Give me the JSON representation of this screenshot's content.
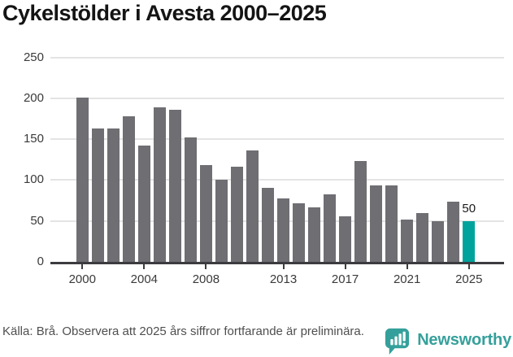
{
  "title": "Cykelstölder i Avesta 2000–2025",
  "chart_data": {
    "type": "bar",
    "title": "Cykelstölder i Avesta 2000–2025",
    "x": [
      2000,
      2001,
      2002,
      2003,
      2004,
      2005,
      2006,
      2007,
      2008,
      2009,
      2010,
      2011,
      2012,
      2013,
      2014,
      2015,
      2016,
      2017,
      2018,
      2019,
      2020,
      2021,
      2022,
      2023,
      2024,
      2025
    ],
    "values": [
      201,
      163,
      163,
      178,
      142,
      189,
      186,
      152,
      118,
      100,
      116,
      136,
      90,
      78,
      72,
      67,
      83,
      56,
      123,
      93,
      93,
      52,
      60,
      50,
      74,
      50
    ],
    "xlabel": "",
    "ylabel": "",
    "ylim": [
      0,
      250
    ],
    "yticks": [
      0,
      50,
      100,
      150,
      200,
      250
    ],
    "xticks": [
      2000,
      2004,
      2008,
      2013,
      2017,
      2021,
      2025
    ],
    "grid": "horizontal",
    "legend": "none",
    "bar_color": "#6e6e73",
    "highlight_index": 25,
    "highlight_color": "#00a39c",
    "value_label": {
      "year": 2025,
      "text": "50"
    }
  },
  "footer": {
    "source_text": "Källa: Brå. Observera att 2025 års siffror fortfarande är preliminära.",
    "brand": {
      "name": "Newsworthy",
      "icon": "newsworthy-chart-bubble-icon",
      "color": "#35a09b"
    }
  }
}
